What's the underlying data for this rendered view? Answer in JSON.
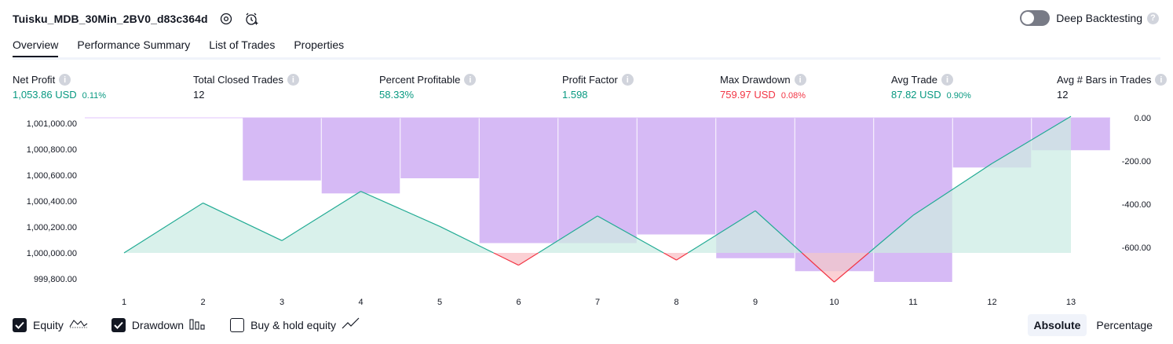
{
  "header": {
    "title": "Tuisku_MDB_30Min_2BV0_d83c364d",
    "deep_backtesting_label": "Deep Backtesting",
    "deep_backtesting_on": false
  },
  "tabs": [
    {
      "label": "Overview",
      "active": true
    },
    {
      "label": "Performance Summary",
      "active": false
    },
    {
      "label": "List of Trades",
      "active": false
    },
    {
      "label": "Properties",
      "active": false
    }
  ],
  "metrics": [
    {
      "label": "Net Profit",
      "value": "1,053.86 USD",
      "percent": "0.11%",
      "tone": "green"
    },
    {
      "label": "Total Closed Trades",
      "value": "12",
      "percent": "",
      "tone": "dark"
    },
    {
      "label": "Percent Profitable",
      "value": "58.33%",
      "percent": "",
      "tone": "green"
    },
    {
      "label": "Profit Factor",
      "value": "1.598",
      "percent": "",
      "tone": "green"
    },
    {
      "label": "Max Drawdown",
      "value": "759.97 USD",
      "percent": "0.08%",
      "tone": "red"
    },
    {
      "label": "Avg Trade",
      "value": "87.82 USD",
      "percent": "0.90%",
      "tone": "green"
    },
    {
      "label": "Avg # Bars in Trades",
      "value": "12",
      "percent": "",
      "tone": "dark"
    }
  ],
  "chart_data": {
    "type": "line",
    "x": [
      1,
      2,
      3,
      4,
      5,
      6,
      7,
      8,
      9,
      10,
      11,
      12,
      13
    ],
    "x_tick_labels": [
      "1",
      "2",
      "3",
      "4",
      "5",
      "6",
      "7",
      "8",
      "9",
      "10",
      "11",
      "12",
      "13"
    ],
    "series": [
      {
        "name": "Equity",
        "axis": "left",
        "type": "area",
        "values": [
          1000000,
          1000385,
          1000095,
          1000475,
          1000205,
          999905,
          1000285,
          999945,
          1000325,
          999775,
          1000290,
          1000690,
          1001053.86
        ]
      },
      {
        "name": "Drawdown",
        "axis": "right",
        "type": "bar",
        "values": [
          0,
          0,
          -290,
          -350,
          -280,
          -580,
          -580,
          -540,
          -650,
          -710,
          -760,
          -230,
          -150
        ]
      }
    ],
    "baseline_left": 1000000,
    "left_axis": {
      "ticks": [
        "1,001,000.00",
        "1,000,800.00",
        "1,000,600.00",
        "1,000,400.00",
        "1,000,200.00",
        "1,000,000.00",
        "999,800.00"
      ],
      "tick_values": [
        1001000,
        1000800,
        1000600,
        1000400,
        1000200,
        1000000,
        999800
      ]
    },
    "right_axis": {
      "ticks": [
        "0.00",
        "-200.00",
        "-400.00",
        "-600.00"
      ],
      "tick_values": [
        0,
        -200,
        -400,
        -600
      ]
    },
    "grid": false,
    "colors": {
      "equity_line": "#22ab94",
      "equity_fill": "#d9f1eb",
      "below_line": "#f23645",
      "below_fill": "#fbd0d4",
      "drawdown_bar": "#e1c3fd"
    }
  },
  "legend": [
    {
      "label": "Equity",
      "checked": true,
      "icon": "equity-icon"
    },
    {
      "label": "Drawdown",
      "checked": true,
      "icon": "drawdown-bars-icon"
    },
    {
      "label": "Buy & hold equity",
      "checked": false,
      "icon": "trend-line-icon"
    }
  ],
  "view_mode": [
    {
      "label": "Absolute",
      "active": true
    },
    {
      "label": "Percentage",
      "active": false
    }
  ]
}
